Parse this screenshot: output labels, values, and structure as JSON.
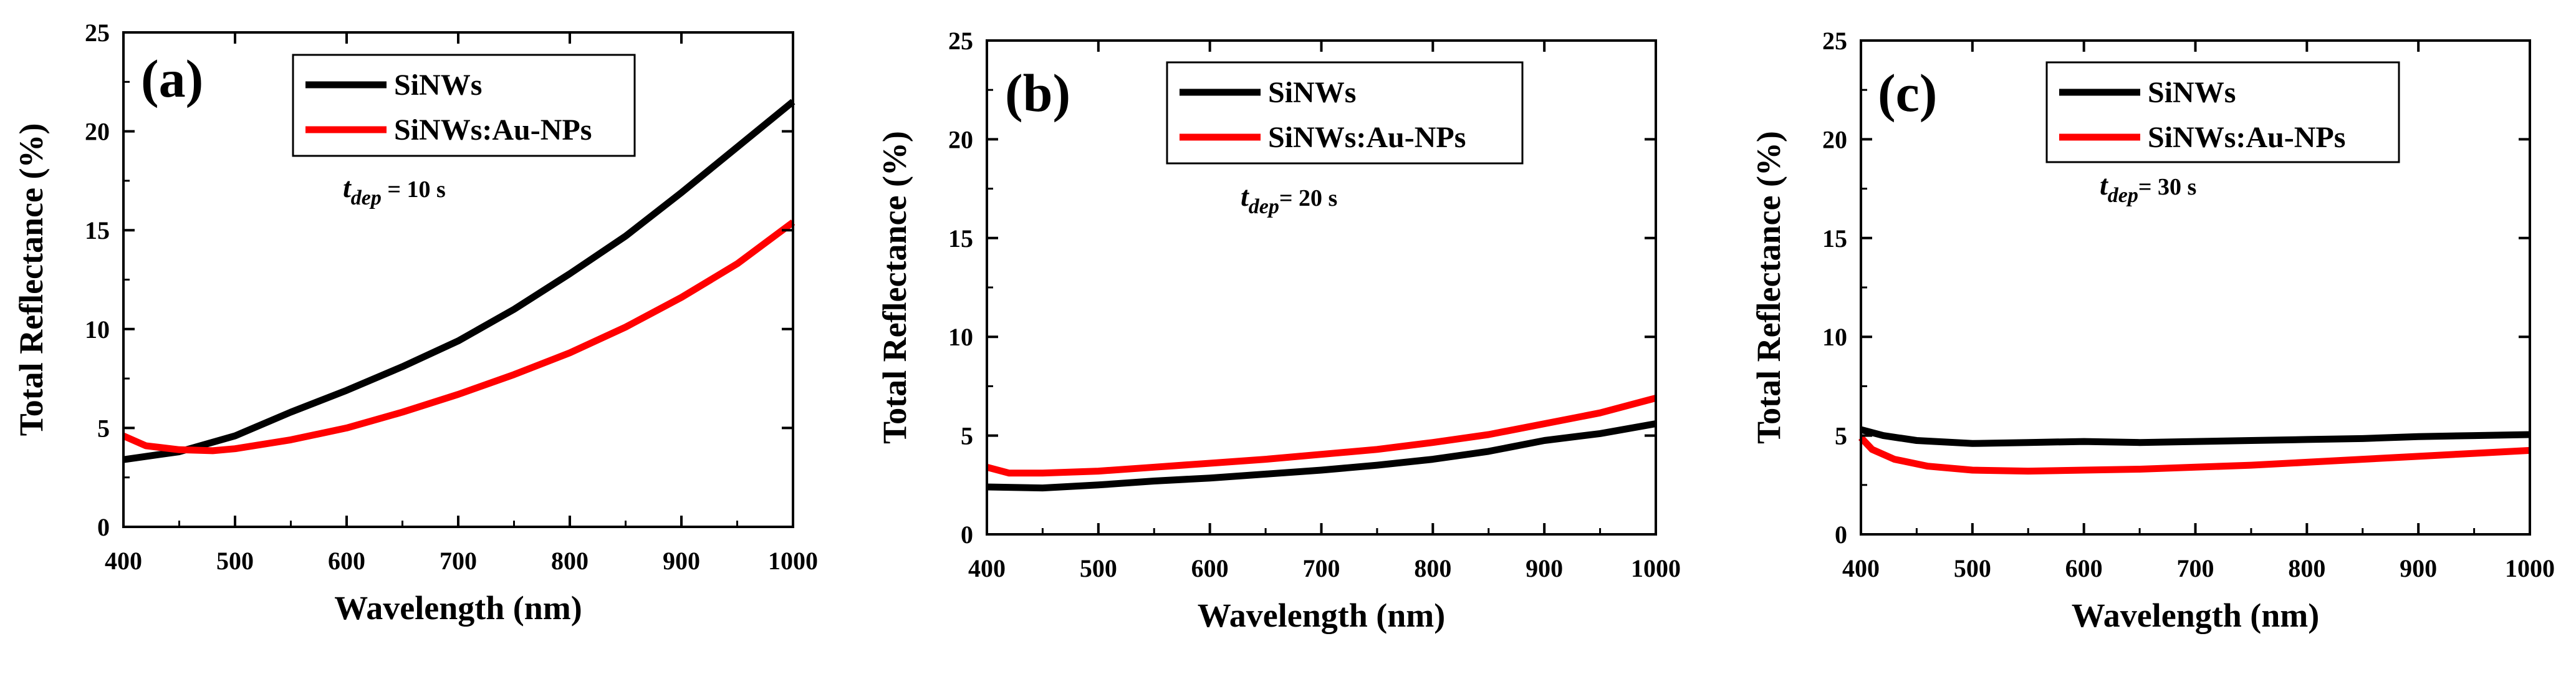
{
  "chart_data": [
    {
      "type": "line",
      "panel_label": "(a)",
      "annotation": {
        "t": "t",
        "sub": "dep",
        "rest": " = 10 s"
      },
      "xlabel": "Wavelength (nm)",
      "ylabel": "Total Reflectance (%)",
      "xlim": [
        400,
        1000
      ],
      "ylim": [
        0,
        25
      ],
      "xticks": [
        400,
        500,
        600,
        700,
        800,
        900,
        1000
      ],
      "yticks": [
        0,
        5,
        10,
        15,
        20,
        25
      ],
      "grid": false,
      "legend_position": "top-center",
      "series": [
        {
          "name": "SiNWs",
          "color": "#000000",
          "x": [
            400,
            450,
            500,
            550,
            600,
            650,
            700,
            750,
            800,
            850,
            900,
            950,
            1000
          ],
          "y": [
            3.4,
            3.8,
            4.6,
            5.8,
            6.9,
            8.1,
            9.4,
            11.0,
            12.8,
            14.7,
            16.9,
            19.2,
            21.5
          ]
        },
        {
          "name": "SiNWs:Au-NPs",
          "color": "#ff0000",
          "x": [
            400,
            420,
            450,
            480,
            500,
            550,
            600,
            650,
            700,
            750,
            800,
            850,
            900,
            950,
            1000
          ],
          "y": [
            4.6,
            4.1,
            3.9,
            3.85,
            3.95,
            4.4,
            5.0,
            5.8,
            6.7,
            7.7,
            8.8,
            10.1,
            11.6,
            13.3,
            15.4
          ]
        }
      ]
    },
    {
      "type": "line",
      "panel_label": "(b)",
      "annotation": {
        "t": "t",
        "sub": "dep",
        "rest": "= 20 s"
      },
      "xlabel": "Wavelength (nm)",
      "ylabel": "Total Reflectance (%)",
      "xlim": [
        400,
        1000
      ],
      "ylim": [
        0,
        25
      ],
      "xticks": [
        400,
        500,
        600,
        700,
        800,
        900,
        1000
      ],
      "yticks": [
        0,
        5,
        10,
        15,
        20,
        25
      ],
      "grid": false,
      "legend_position": "top-center",
      "series": [
        {
          "name": "SiNWs",
          "color": "#000000",
          "x": [
            400,
            450,
            500,
            550,
            600,
            650,
            700,
            750,
            800,
            850,
            900,
            950,
            1000
          ],
          "y": [
            2.4,
            2.35,
            2.5,
            2.7,
            2.85,
            3.05,
            3.25,
            3.5,
            3.8,
            4.2,
            4.75,
            5.1,
            5.6
          ]
        },
        {
          "name": "SiNWs:Au-NPs",
          "color": "#ff0000",
          "x": [
            400,
            420,
            450,
            500,
            550,
            600,
            650,
            700,
            750,
            800,
            850,
            900,
            950,
            1000
          ],
          "y": [
            3.4,
            3.1,
            3.1,
            3.2,
            3.4,
            3.6,
            3.8,
            4.05,
            4.3,
            4.65,
            5.05,
            5.6,
            6.15,
            6.9
          ]
        }
      ]
    },
    {
      "type": "line",
      "panel_label": "(c)",
      "annotation": {
        "t": "t",
        "sub": "dep",
        "rest": "= 30 s"
      },
      "xlabel": "Wavelength (nm)",
      "ylabel": "Total Reflectance (%)",
      "xlim": [
        400,
        1000
      ],
      "ylim": [
        0,
        25
      ],
      "xticks": [
        400,
        500,
        600,
        700,
        800,
        900,
        1000
      ],
      "yticks": [
        0,
        5,
        10,
        15,
        20,
        25
      ],
      "grid": false,
      "legend_position": "top-center",
      "series": [
        {
          "name": "SiNWs",
          "color": "#000000",
          "x": [
            400,
            420,
            450,
            500,
            550,
            600,
            650,
            700,
            750,
            800,
            850,
            900,
            950,
            1000
          ],
          "y": [
            5.3,
            5.0,
            4.75,
            4.6,
            4.65,
            4.7,
            4.65,
            4.7,
            4.75,
            4.8,
            4.85,
            4.95,
            5.0,
            5.05
          ]
        },
        {
          "name": "SiNWs:Au-NPs",
          "color": "#ff0000",
          "x": [
            400,
            410,
            430,
            460,
            500,
            550,
            600,
            650,
            700,
            750,
            800,
            850,
            900,
            950,
            1000
          ],
          "y": [
            4.9,
            4.3,
            3.8,
            3.45,
            3.25,
            3.2,
            3.25,
            3.3,
            3.4,
            3.5,
            3.65,
            3.8,
            3.95,
            4.1,
            4.25
          ]
        }
      ]
    }
  ]
}
